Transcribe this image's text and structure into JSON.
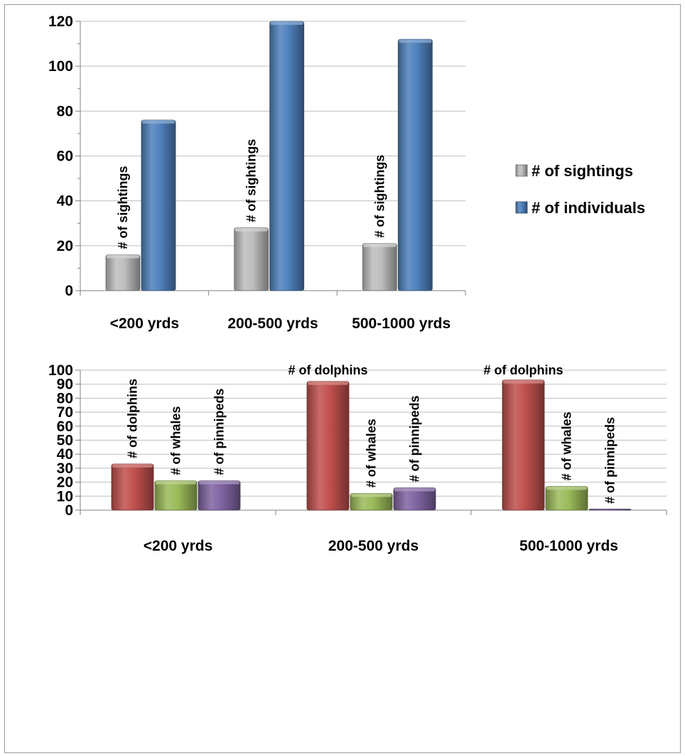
{
  "chart_data": [
    {
      "type": "bar",
      "categories": [
        "<200 yrds",
        "200-500 yrds",
        "500-1000 yrds"
      ],
      "series": [
        {
          "name": "# of sightings",
          "values": [
            16,
            28,
            21
          ],
          "color": "#bdbdbd"
        },
        {
          "name": "# of individuals",
          "values": [
            76,
            120,
            112
          ],
          "color": "#4f81bd"
        }
      ],
      "ylim": [
        0,
        120
      ],
      "yticks": [
        0,
        20,
        40,
        60,
        80,
        100,
        120
      ],
      "grid": true,
      "legend": "right",
      "bar_labels": [
        {
          "category": 0,
          "series": 0,
          "text": "# of sightings"
        },
        {
          "category": 1,
          "series": 0,
          "text": "# of sightings"
        },
        {
          "category": 2,
          "series": 0,
          "text": "# of sightings"
        }
      ]
    },
    {
      "type": "bar",
      "categories": [
        "<200 yrds",
        "200-500 yrds",
        "500-1000 yrds"
      ],
      "series": [
        {
          "values": [
            33,
            92,
            93
          ],
          "color": "#c0504d"
        },
        {
          "values": [
            21,
            12,
            17
          ],
          "color": "#9bbb59"
        },
        {
          "values": [
            21,
            16,
            0.5
          ],
          "color": "#8064a2"
        }
      ],
      "ylim": [
        0,
        100
      ],
      "yticks": [
        0,
        10,
        20,
        30,
        40,
        50,
        60,
        70,
        80,
        90,
        100
      ],
      "grid": true,
      "bar_labels": [
        {
          "category": 0,
          "series": 0,
          "text": "# of dolphins",
          "vertical": true
        },
        {
          "category": 0,
          "series": 1,
          "text": "# of whales",
          "vertical": true
        },
        {
          "category": 0,
          "series": 2,
          "text": "# of pinnipeds",
          "vertical": true
        },
        {
          "category": 1,
          "series": 0,
          "text": "# of dolphins",
          "vertical": false
        },
        {
          "category": 1,
          "series": 1,
          "text": "# of whales",
          "vertical": true
        },
        {
          "category": 1,
          "series": 2,
          "text": "# of pinnipeds",
          "vertical": true
        },
        {
          "category": 2,
          "series": 0,
          "text": "# of dolphins",
          "vertical": false
        },
        {
          "category": 2,
          "series": 1,
          "text": "# of whales",
          "vertical": true
        },
        {
          "category": 2,
          "series": 2,
          "text": "# of pinnipeds",
          "vertical": true
        }
      ]
    }
  ]
}
